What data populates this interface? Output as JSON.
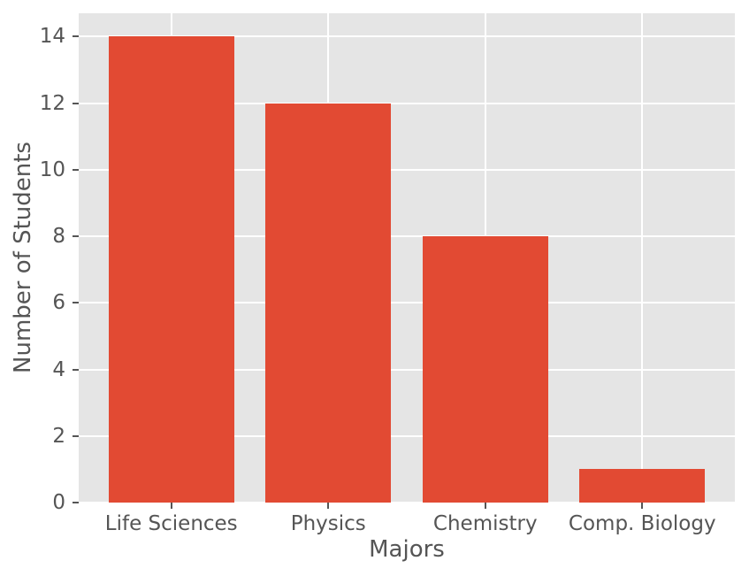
{
  "chart_data": {
    "type": "bar",
    "title": "",
    "xlabel": "Majors",
    "ylabel": "Number of Students",
    "categories": [
      "Life Sciences",
      "Physics",
      "Chemistry",
      "Comp. Biology"
    ],
    "values": [
      14,
      12,
      8,
      1
    ],
    "yticks": [
      0,
      2,
      4,
      6,
      8,
      10,
      12,
      14
    ],
    "ylim": [
      0,
      14.7
    ],
    "bar_width_fraction": 0.8,
    "grid": true,
    "legend": false,
    "style": "ggplot",
    "colors": {
      "bar": "#E24A33",
      "plot_background": "#E5E5E5",
      "figure_background": "#FFFFFF",
      "gridline": "#FFFFFF",
      "text": "#555555",
      "tick": "#555555"
    }
  }
}
